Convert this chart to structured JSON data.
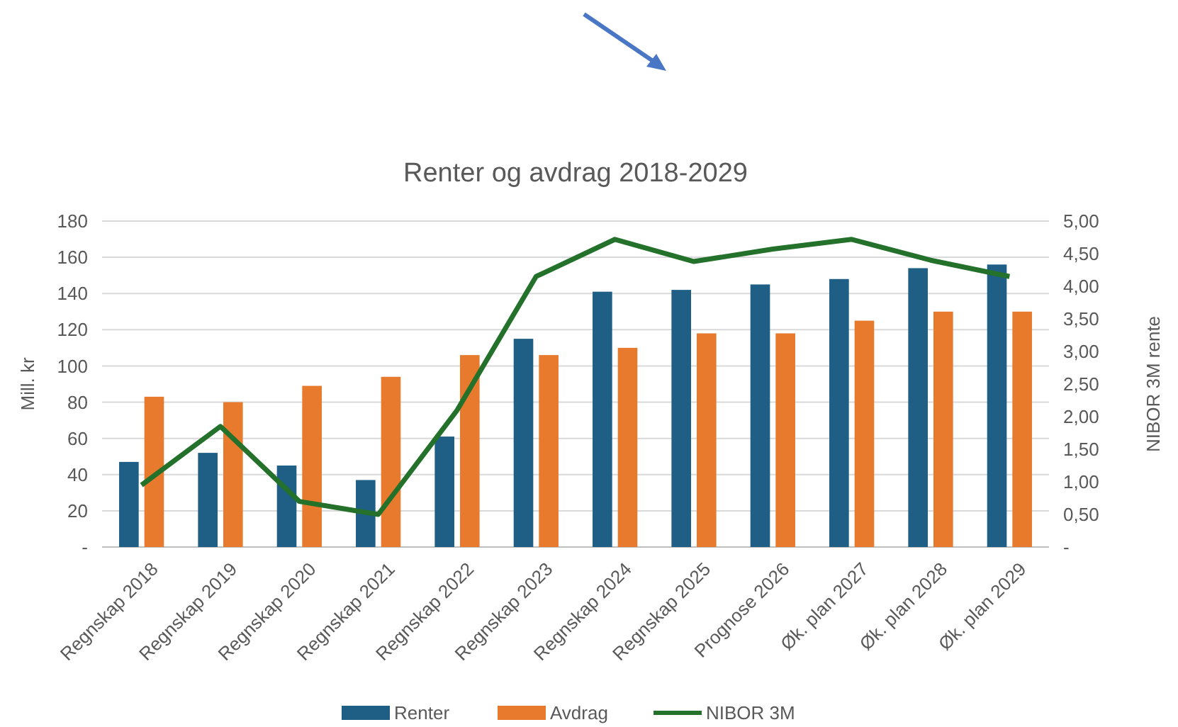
{
  "chart_data": {
    "type": "bar",
    "title": "Renter og avdrag 2018-2029",
    "ylabel": "Mill. kr",
    "y2label": "NIBOR 3M rente",
    "categories": [
      "Regnskap 2018",
      "Regnskap 2019",
      "Regnskap 2020",
      "Regnskap 2021",
      "Regnskap 2022",
      "Regnskap 2023",
      "Regnskap 2024",
      "Regnskap 2025",
      "Prognose 2026",
      "Øk. plan 2027",
      "Øk. plan 2028",
      "Øk. plan 2029"
    ],
    "series": [
      {
        "name": "Renter",
        "color": "#1f5f85",
        "values": [
          47,
          52,
          45,
          37,
          61,
          115,
          141,
          142,
          145,
          148,
          154,
          156
        ]
      },
      {
        "name": "Avdrag",
        "color": "#e87a2e",
        "values": [
          83,
          80,
          89,
          94,
          106,
          106,
          110,
          118,
          118,
          125,
          130,
          130
        ]
      },
      {
        "name": "NIBOR 3M",
        "type": "line",
        "axis": "y2",
        "color": "#23712a",
        "values": [
          0.95,
          1.85,
          0.7,
          0.5,
          2.1,
          4.15,
          4.72,
          4.38,
          4.57,
          4.72,
          4.4,
          4.15
        ]
      }
    ],
    "ylim": [
      0,
      180
    ],
    "yticks": [
      {
        "value": 0,
        "label": "-"
      },
      20,
      40,
      60,
      80,
      100,
      120,
      140,
      160,
      180
    ],
    "y2lim": [
      0,
      5
    ],
    "y2ticks": [
      {
        "value": 0,
        "label": "-"
      },
      {
        "value": 0.5,
        "label": "0,50"
      },
      {
        "value": 1,
        "label": "1,00"
      },
      {
        "value": 1.5,
        "label": "1,50"
      },
      {
        "value": 2,
        "label": "2,00"
      },
      {
        "value": 2.5,
        "label": "2,50"
      },
      {
        "value": 3,
        "label": "3,00"
      },
      {
        "value": 3.5,
        "label": "3,50"
      },
      {
        "value": 4,
        "label": "4,00"
      },
      {
        "value": 4.5,
        "label": "4,50"
      },
      {
        "value": 5,
        "label": "5,00"
      }
    ],
    "grid": "y",
    "legend": "bottom",
    "marker": "none",
    "line_style": "solid"
  }
}
